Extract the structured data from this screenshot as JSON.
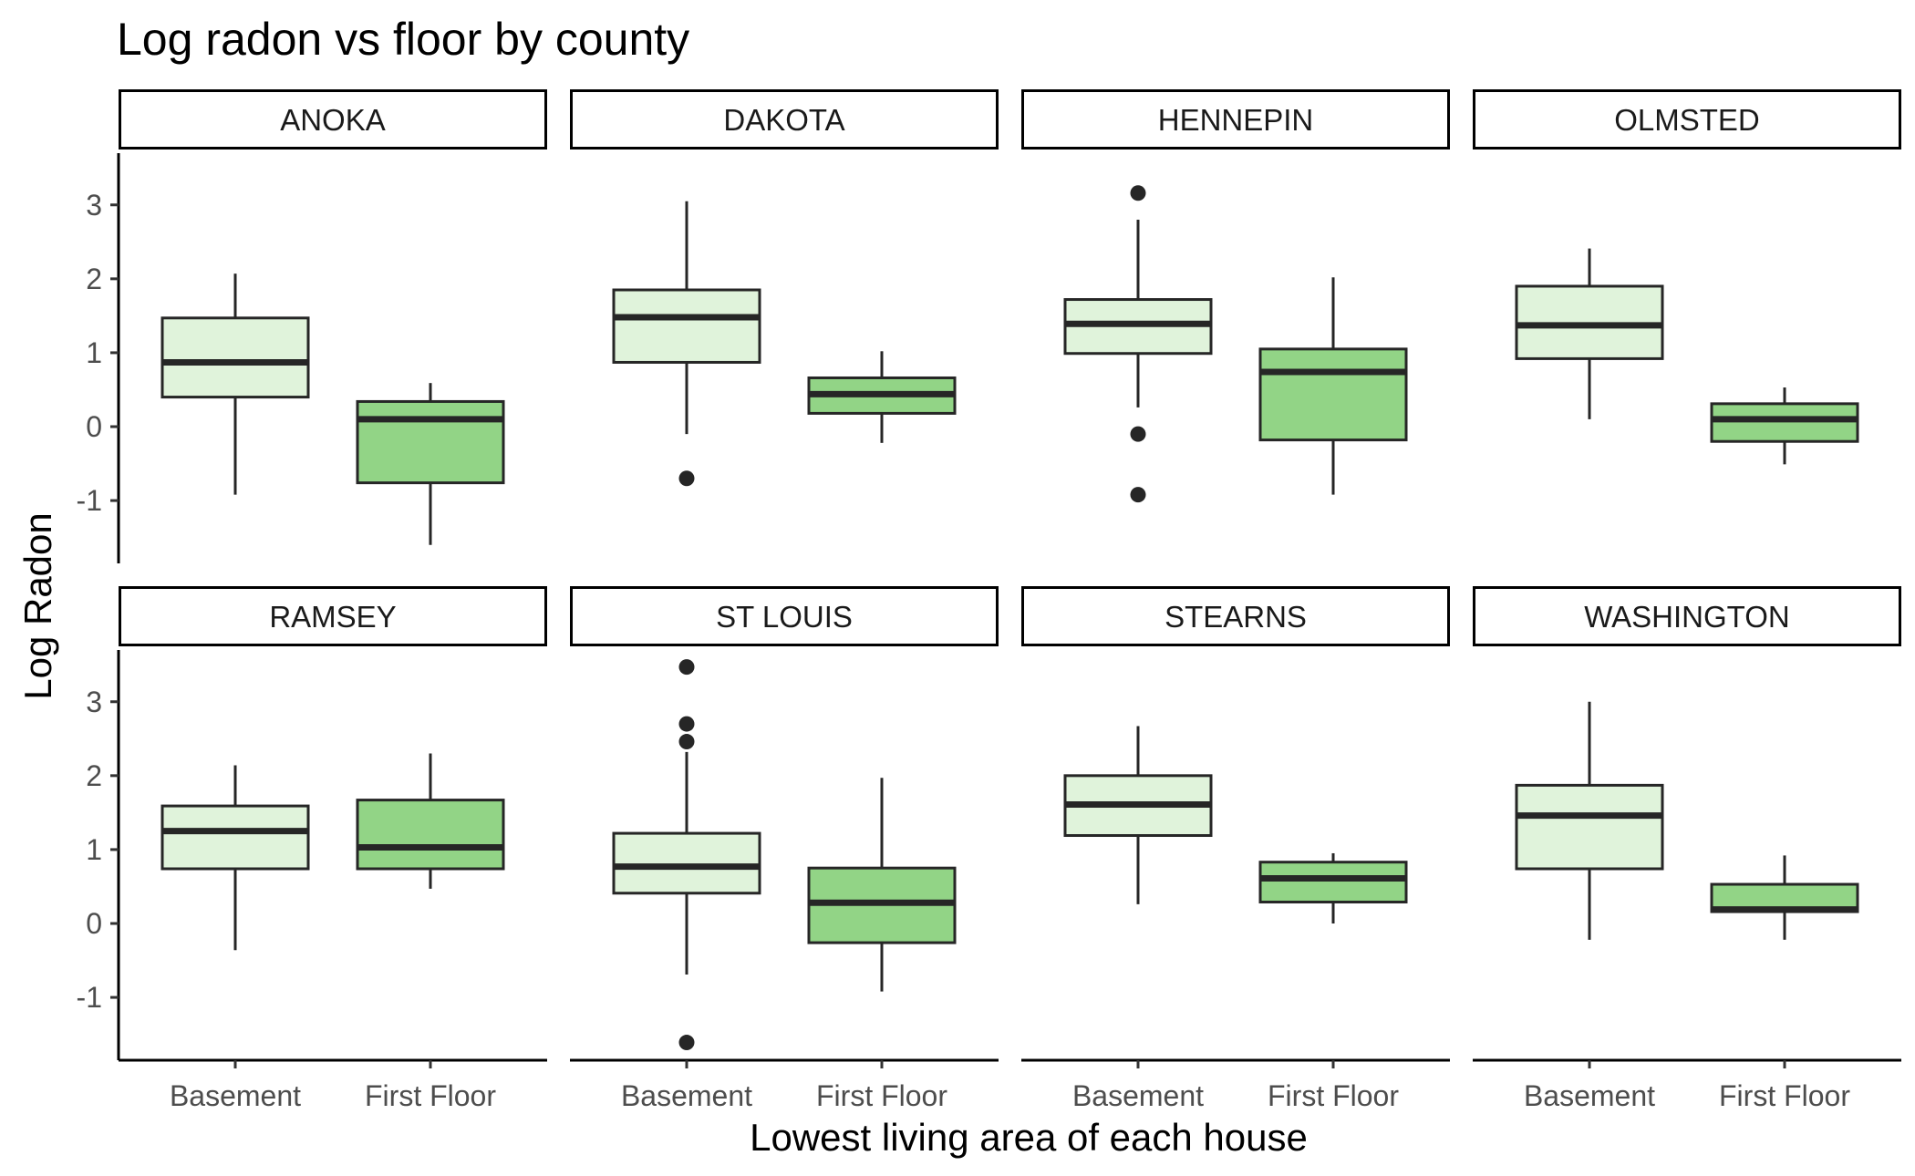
{
  "chart_data": {
    "type": "boxplot",
    "title": "Log radon vs floor by county",
    "xlabel": "Lowest living area of each house",
    "ylabel": "Log Radon",
    "categories": [
      "Basement",
      "First Floor"
    ],
    "yticks": [
      -1,
      0,
      1,
      2,
      3
    ],
    "ylim": [
      -1.85,
      3.7
    ],
    "grid": false,
    "facet_layout": "2 rows x 4 columns",
    "colors": {
      "Basement": "#e0f3db",
      "First Floor": "#92d486",
      "line": "#262626"
    },
    "panels": [
      {
        "county": "ANOKA",
        "boxes": [
          {
            "category": "Basement",
            "whisker_low": -0.92,
            "q1": 0.4,
            "median": 0.87,
            "q3": 1.47,
            "whisker_high": 2.07,
            "outliers": []
          },
          {
            "category": "First Floor",
            "whisker_low": -1.6,
            "q1": -0.76,
            "median": 0.1,
            "q3": 0.34,
            "whisker_high": 0.59,
            "outliers": []
          }
        ]
      },
      {
        "county": "DAKOTA",
        "boxes": [
          {
            "category": "Basement",
            "whisker_low": -0.1,
            "q1": 0.87,
            "median": 1.48,
            "q3": 1.85,
            "whisker_high": 3.05,
            "outliers": [
              -0.7
            ]
          },
          {
            "category": "First Floor",
            "whisker_low": -0.22,
            "q1": 0.18,
            "median": 0.44,
            "q3": 0.66,
            "whisker_high": 1.02,
            "outliers": []
          }
        ]
      },
      {
        "county": "HENNEPIN",
        "boxes": [
          {
            "category": "Basement",
            "whisker_low": 0.26,
            "q1": 0.99,
            "median": 1.39,
            "q3": 1.72,
            "whisker_high": 2.8,
            "outliers": [
              3.16,
              -0.1,
              -0.92
            ]
          },
          {
            "category": "First Floor",
            "whisker_low": -0.92,
            "q1": -0.18,
            "median": 0.74,
            "q3": 1.05,
            "whisker_high": 2.02,
            "outliers": []
          }
        ]
      },
      {
        "county": "OLMSTED",
        "boxes": [
          {
            "category": "Basement",
            "whisker_low": 0.1,
            "q1": 0.92,
            "median": 1.37,
            "q3": 1.9,
            "whisker_high": 2.41,
            "outliers": []
          },
          {
            "category": "First Floor",
            "whisker_low": -0.51,
            "q1": -0.2,
            "median": 0.1,
            "q3": 0.31,
            "whisker_high": 0.53,
            "outliers": []
          }
        ]
      },
      {
        "county": "RAMSEY",
        "boxes": [
          {
            "category": "Basement",
            "whisker_low": -0.36,
            "q1": 0.74,
            "median": 1.25,
            "q3": 1.59,
            "whisker_high": 2.14,
            "outliers": []
          },
          {
            "category": "First Floor",
            "whisker_low": 0.47,
            "q1": 0.74,
            "median": 1.03,
            "q3": 1.67,
            "whisker_high": 2.3,
            "outliers": []
          }
        ]
      },
      {
        "county": "ST LOUIS",
        "boxes": [
          {
            "category": "Basement",
            "whisker_low": -0.69,
            "q1": 0.41,
            "median": 0.77,
            "q3": 1.22,
            "whisker_high": 2.32,
            "outliers": [
              3.47,
              2.7,
              2.46,
              -1.61
            ]
          },
          {
            "category": "First Floor",
            "whisker_low": -0.92,
            "q1": -0.26,
            "median": 0.28,
            "q3": 0.75,
            "whisker_high": 1.97,
            "outliers": []
          }
        ]
      },
      {
        "county": "STEARNS",
        "boxes": [
          {
            "category": "Basement",
            "whisker_low": 0.26,
            "q1": 1.19,
            "median": 1.61,
            "q3": 2.0,
            "whisker_high": 2.67,
            "outliers": []
          },
          {
            "category": "First Floor",
            "whisker_low": 0.0,
            "q1": 0.29,
            "median": 0.61,
            "q3": 0.83,
            "whisker_high": 0.95,
            "outliers": []
          }
        ]
      },
      {
        "county": "WASHINGTON",
        "boxes": [
          {
            "category": "Basement",
            "whisker_low": -0.22,
            "q1": 0.74,
            "median": 1.46,
            "q3": 1.87,
            "whisker_high": 3.0,
            "outliers": []
          },
          {
            "category": "First Floor",
            "whisker_low": -0.22,
            "q1": 0.16,
            "median": 0.19,
            "q3": 0.53,
            "whisker_high": 0.92,
            "outliers": []
          }
        ]
      }
    ]
  }
}
